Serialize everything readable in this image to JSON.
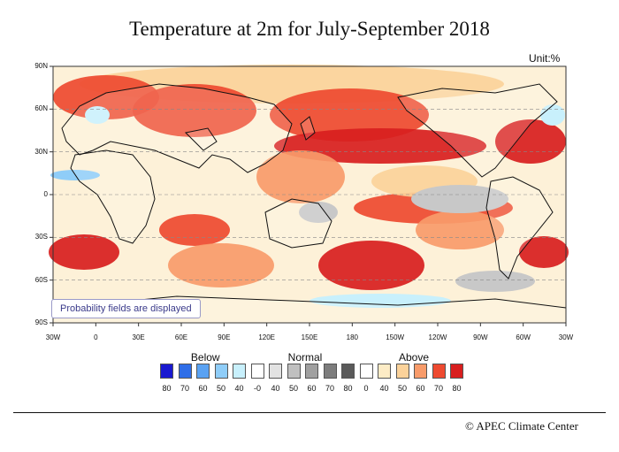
{
  "title": "Temperature at 2m for July-September 2018",
  "unit": "Unit:%",
  "note": "Probability fields are displayed",
  "copyright": "© APEC Climate Center",
  "lat_labels": [
    "90N",
    "60N",
    "30N",
    "0",
    "30S",
    "60S",
    "90S"
  ],
  "lon_labels": [
    "30W",
    "0",
    "30E",
    "60E",
    "90E",
    "120E",
    "150E",
    "180",
    "150W",
    "120W",
    "90W",
    "60W",
    "30W"
  ],
  "legend": {
    "groups": [
      {
        "label": "Below",
        "ticks": [
          "80",
          "70",
          "60",
          "50",
          "40"
        ],
        "colors": [
          "#1a1ad0",
          "#2f6ee8",
          "#5aa2f2",
          "#8fcdf8",
          "#c8f0fc"
        ]
      },
      {
        "label": "Normal",
        "ticks": [
          "-0",
          "40",
          "50",
          "60",
          "70",
          "80"
        ],
        "colors": [
          "#ffffff",
          "#e2e2e2",
          "#c0c0c0",
          "#a0a0a0",
          "#7d7d7d",
          "#5a5a5a"
        ]
      },
      {
        "label": "Above",
        "ticks": [
          "0",
          "40",
          "50",
          "60",
          "70",
          "80"
        ],
        "colors": [
          "#ffffff",
          "#fdecc6",
          "#fbd29a",
          "#f89b6a",
          "#ee4a30",
          "#d81e1e"
        ]
      }
    ]
  },
  "map_colors": {
    "ocean_base": "#fdf1d8",
    "above_light": "#fbd29a",
    "above_mid": "#f89b6a",
    "above_strong": "#ee4a30",
    "above_max": "#d81e1e",
    "normal": "#c8c8c8",
    "below_light": "#c8f0fc",
    "below_mid": "#8fcdf8",
    "land_white": "#ffffff",
    "coast": "#111111"
  }
}
